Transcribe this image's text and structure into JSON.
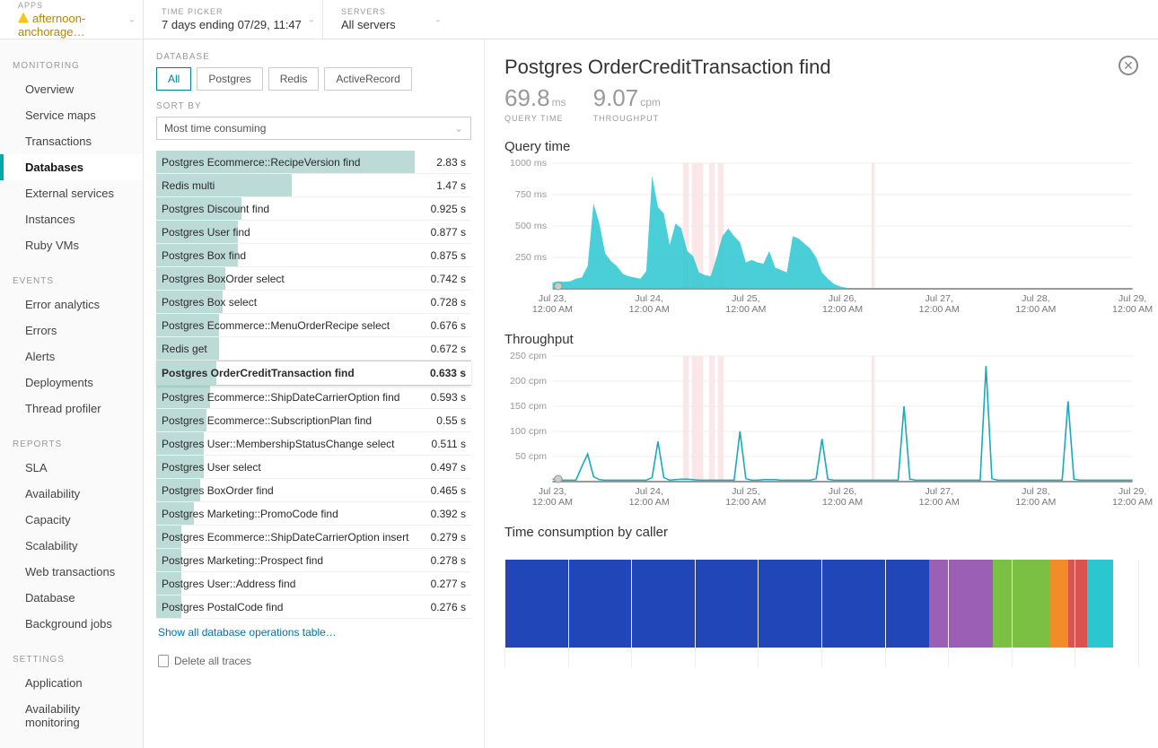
{
  "topbar": {
    "apps_label": "APPS",
    "apps_value": "afternoon-anchorage…",
    "time_label": "TIME PICKER",
    "time_value": "7 days ending 07/29, 11:47",
    "servers_label": "SERVERS",
    "servers_value": "All servers"
  },
  "sidebar": {
    "groups": [
      {
        "title": "MONITORING",
        "items": [
          "Overview",
          "Service maps",
          "Transactions",
          "Databases",
          "External services",
          "Instances",
          "Ruby VMs"
        ],
        "active_index": 3
      },
      {
        "title": "EVENTS",
        "items": [
          "Error analytics",
          "Errors",
          "Alerts",
          "Deployments",
          "Thread profiler"
        ],
        "active_index": -1
      },
      {
        "title": "REPORTS",
        "items": [
          "SLA",
          "Availability",
          "Capacity",
          "Scalability",
          "Web transactions",
          "Database",
          "Background jobs"
        ],
        "active_index": -1
      },
      {
        "title": "SETTINGS",
        "items": [
          "Application",
          "Availability monitoring"
        ],
        "active_index": -1
      }
    ]
  },
  "list": {
    "section_label": "DATABASE",
    "tabs": [
      "All",
      "Postgres",
      "Redis",
      "ActiveRecord"
    ],
    "active_tab": 0,
    "sort_label": "SORT BY",
    "sort_value": "Most time consuming",
    "rows": [
      {
        "name": "Postgres Ecommerce::RecipeVersion find",
        "val": "2.83 s",
        "pct": 82
      },
      {
        "name": "Redis multi",
        "val": "1.47 s",
        "pct": 43
      },
      {
        "name": "Postgres Discount find",
        "val": "0.925 s",
        "pct": 27
      },
      {
        "name": "Postgres User find",
        "val": "0.877 s",
        "pct": 26
      },
      {
        "name": "Postgres Box find",
        "val": "0.875 s",
        "pct": 26
      },
      {
        "name": "Postgres BoxOrder select",
        "val": "0.742 s",
        "pct": 22
      },
      {
        "name": "Postgres Box select",
        "val": "0.728 s",
        "pct": 21
      },
      {
        "name": "Postgres Ecommerce::MenuOrderRecipe select",
        "val": "0.676 s",
        "pct": 20
      },
      {
        "name": "Redis get",
        "val": "0.672 s",
        "pct": 20
      },
      {
        "name": "Postgres OrderCreditTransaction find",
        "val": "0.633 s",
        "pct": 19
      },
      {
        "name": "Postgres Ecommerce::ShipDateCarrierOption find",
        "val": "0.593 s",
        "pct": 17
      },
      {
        "name": "Postgres Ecommerce::SubscriptionPlan find",
        "val": "0.55 s",
        "pct": 16
      },
      {
        "name": "Postgres User::MembershipStatusChange select",
        "val": "0.511 s",
        "pct": 15
      },
      {
        "name": "Postgres User select",
        "val": "0.497 s",
        "pct": 15
      },
      {
        "name": "Postgres BoxOrder find",
        "val": "0.465 s",
        "pct": 14
      },
      {
        "name": "Postgres Marketing::PromoCode find",
        "val": "0.392 s",
        "pct": 12
      },
      {
        "name": "Postgres Ecommerce::ShipDateCarrierOption insert",
        "val": "0.279 s",
        "pct": 8
      },
      {
        "name": "Postgres Marketing::Prospect find",
        "val": "0.278 s",
        "pct": 8
      },
      {
        "name": "Postgres User::Address find",
        "val": "0.277 s",
        "pct": 8
      },
      {
        "name": "Postgres PostalCode find",
        "val": "0.276 s",
        "pct": 8
      }
    ],
    "selected_index": 9,
    "show_all_link": "Show all database operations table…",
    "delete_link": "Delete all traces"
  },
  "detail": {
    "title": "Postgres OrderCreditTransaction find",
    "metrics": [
      {
        "value": "69.8",
        "unit": "ms",
        "caption": "QUERY TIME"
      },
      {
        "value": "9.07",
        "unit": "cpm",
        "caption": "THROUGHPUT"
      }
    ],
    "charts": {
      "query_time": {
        "title": "Query time",
        "y_ticks": [
          "1000 ms",
          "750 ms",
          "500 ms",
          "250 ms"
        ],
        "y_max": 1000,
        "x_labels": [
          "Jul 23,",
          "Jul 24,",
          "Jul 25,",
          "Jul 26,",
          "Jul 27,",
          "Jul 28,",
          "Jul 29,"
        ],
        "x_sub": "12:00 AM",
        "area_color": "#2ac7d1",
        "marker_bands": [
          [
            0.225,
            0.235
          ],
          [
            0.24,
            0.26
          ],
          [
            0.27,
            0.28
          ],
          [
            0.285,
            0.295
          ],
          [
            0.55,
            0.555
          ]
        ],
        "series": [
          50,
          60,
          55,
          60,
          80,
          90,
          180,
          680,
          520,
          280,
          220,
          180,
          120,
          100,
          90,
          80,
          140,
          900,
          650,
          600,
          350,
          520,
          480,
          300,
          260,
          130,
          110,
          100,
          250,
          420,
          480,
          420,
          370,
          210,
          230,
          210,
          200,
          300,
          170,
          150,
          130,
          420,
          400,
          360,
          320,
          250,
          130,
          80,
          40,
          20,
          10,
          0,
          0,
          0,
          0,
          0,
          0,
          0,
          0,
          0,
          0,
          0,
          0,
          0,
          0,
          0,
          0,
          0,
          0,
          0,
          0,
          0,
          0,
          0,
          0,
          0,
          0,
          0,
          0,
          0,
          0,
          0,
          0,
          0,
          0,
          0,
          0,
          0,
          0,
          0,
          0,
          0,
          0,
          0,
          0,
          0,
          0,
          0,
          0,
          0
        ]
      },
      "throughput": {
        "title": "Throughput",
        "y_ticks": [
          "250 cpm",
          "200 cpm",
          "150 cpm",
          "100 cpm",
          "50 cpm"
        ],
        "y_max": 250,
        "x_labels": [
          "Jul 23,",
          "Jul 24,",
          "Jul 25,",
          "Jul 26,",
          "Jul 27,",
          "Jul 28,",
          "Jul 29,"
        ],
        "x_sub": "12:00 AM",
        "line_color": "#1ba9bb",
        "marker_bands": [
          [
            0.225,
            0.235
          ],
          [
            0.24,
            0.26
          ],
          [
            0.27,
            0.28
          ],
          [
            0.285,
            0.295
          ],
          [
            0.55,
            0.555
          ]
        ],
        "series": [
          5,
          4,
          3,
          3,
          3,
          30,
          55,
          10,
          4,
          3,
          3,
          3,
          3,
          3,
          3,
          3,
          3,
          8,
          80,
          8,
          3,
          4,
          5,
          5,
          4,
          3,
          3,
          3,
          3,
          3,
          3,
          3,
          100,
          6,
          3,
          3,
          4,
          4,
          4,
          3,
          3,
          3,
          3,
          3,
          3,
          6,
          85,
          5,
          3,
          3,
          3,
          3,
          3,
          3,
          3,
          3,
          3,
          3,
          3,
          3,
          150,
          5,
          3,
          3,
          3,
          3,
          3,
          3,
          3,
          3,
          3,
          3,
          3,
          3,
          230,
          6,
          3,
          3,
          3,
          3,
          3,
          3,
          3,
          3,
          3,
          3,
          3,
          3,
          160,
          5,
          3,
          3,
          3,
          3,
          3,
          3,
          3,
          3,
          3,
          3
        ]
      }
    },
    "caller": {
      "title": "Time consumption by caller",
      "segments": [
        {
          "color": "#2146b7",
          "pct": 67
        },
        {
          "color": "#9b5fb5",
          "pct": 10
        },
        {
          "color": "#7bc043",
          "pct": 9
        },
        {
          "color": "#f28c28",
          "pct": 3
        },
        {
          "color": "#d9534f",
          "pct": 3
        },
        {
          "color": "#2ac7d1",
          "pct": 4
        }
      ],
      "grid_lines": 10
    }
  }
}
